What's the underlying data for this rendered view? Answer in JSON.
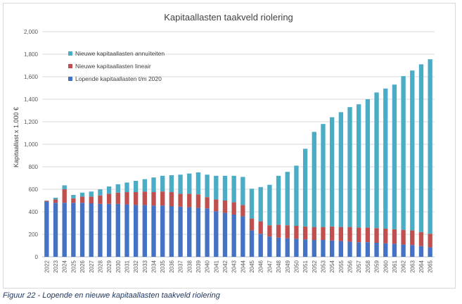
{
  "figure": {
    "caption": "Figuur 22 - Lopende en nieuwe kapitaallasten taakveld riolering"
  },
  "chart_data": {
    "type": "bar",
    "stacked": true,
    "title": "Kapitaallasten taakveld riolering",
    "xlabel": "",
    "ylabel": "Kapitaallast x 1.000 €",
    "ylim": [
      0,
      2000
    ],
    "yticks": [
      0,
      200,
      400,
      600,
      800,
      1000,
      1200,
      1400,
      1600,
      1800,
      2000
    ],
    "ytick_labels": [
      "0",
      "200",
      "400",
      "600",
      "800",
      "1,000",
      "1,200",
      "1,400",
      "1,600",
      "1,800",
      "2,000"
    ],
    "grid": true,
    "legend_position": "top-left",
    "categories": [
      "2022",
      "2023",
      "2024",
      "2025",
      "2026",
      "2027",
      "2028",
      "2029",
      "2030",
      "2031",
      "2032",
      "2033",
      "2034",
      "2035",
      "2036",
      "2037",
      "2038",
      "2039",
      "2040",
      "2041",
      "2042",
      "2043",
      "2044",
      "2045",
      "2046",
      "2047",
      "2048",
      "2049",
      "2050",
      "2051",
      "2052",
      "2053",
      "2054",
      "2055",
      "2056",
      "2057",
      "2058",
      "2059",
      "2060",
      "2061",
      "2062",
      "2063",
      "2064",
      "2065"
    ],
    "series": [
      {
        "name": "Lopende kapitaallasten t/m 2020",
        "color": "#4472c4",
        "values": [
          490,
          480,
          480,
          480,
          480,
          475,
          470,
          470,
          470,
          465,
          460,
          460,
          455,
          455,
          450,
          445,
          440,
          435,
          430,
          405,
          390,
          375,
          360,
          235,
          205,
          180,
          170,
          165,
          160,
          155,
          150,
          150,
          145,
          140,
          135,
          130,
          130,
          125,
          120,
          115,
          110,
          105,
          95,
          85
        ]
      },
      {
        "name": "Nieuwe kapitaallasten lineair",
        "color": "#c0504d",
        "values": [
          8,
          30,
          120,
          40,
          55,
          60,
          75,
          90,
          100,
          110,
          115,
          120,
          120,
          125,
          125,
          115,
          120,
          120,
          100,
          105,
          110,
          110,
          100,
          105,
          110,
          100,
          115,
          115,
          115,
          115,
          115,
          115,
          125,
          125,
          130,
          130,
          130,
          130,
          130,
          130,
          130,
          130,
          125,
          120
        ]
      },
      {
        "name": "Nieuwe kapitaallasten annuïteiten",
        "color": "#4bacc6",
        "values": [
          2,
          15,
          35,
          30,
          35,
          45,
          55,
          65,
          75,
          85,
          100,
          110,
          130,
          140,
          150,
          170,
          180,
          195,
          200,
          210,
          220,
          235,
          250,
          265,
          305,
          360,
          435,
          475,
          535,
          690,
          845,
          915,
          970,
          1020,
          1065,
          1095,
          1140,
          1205,
          1245,
          1285,
          1365,
          1420,
          1490,
          1550
        ]
      }
    ]
  }
}
